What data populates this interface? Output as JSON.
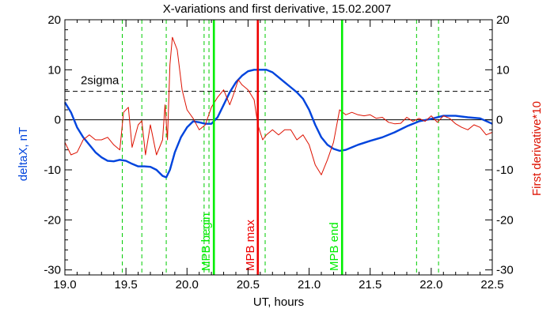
{
  "chart_data": {
    "type": "line",
    "title": "X-variations and first derivative, 15.02.2007",
    "xlabel": "UT, hours",
    "ylabel_left": "deltaX, nT",
    "ylabel_right": "First derivative*10",
    "xlim": [
      19.0,
      22.5
    ],
    "ylim": [
      -31,
      20
    ],
    "x_ticks": [
      "19.0",
      "19.5",
      "20.0",
      "20.5",
      "21.0",
      "21.5",
      "22.0",
      "22.5"
    ],
    "y_ticks": [
      "20",
      "10",
      "0",
      "-10",
      "-20",
      "-30"
    ],
    "colors": {
      "deltaX": "#0044dd",
      "derivative": "#dd1100",
      "mpb": "#00ee00",
      "mpb_max": "#ee0000",
      "dashed": "#00cc00",
      "axis": "#000000"
    },
    "threshold": {
      "label": "2sigma",
      "value": 5.7
    },
    "zero_line": 0,
    "dashed_verticals": [
      19.47,
      19.63,
      19.83,
      20.14,
      20.18,
      20.64,
      21.88,
      22.06
    ],
    "markers": [
      {
        "label": "MPB begin",
        "x": 20.22,
        "color": "#00ee00"
      },
      {
        "label": "MPB max",
        "x": 20.58,
        "color": "#ee0000"
      },
      {
        "label": "MPB end",
        "x": 21.27,
        "color": "#00ee00"
      }
    ],
    "series": [
      {
        "key": "deltaX",
        "x": [
          19.0,
          19.05,
          19.1,
          19.15,
          19.2,
          19.25,
          19.3,
          19.35,
          19.4,
          19.45,
          19.5,
          19.55,
          19.6,
          19.65,
          19.7,
          19.75,
          19.8,
          19.83,
          19.86,
          19.9,
          19.95,
          20.0,
          20.05,
          20.1,
          20.15,
          20.2,
          20.25,
          20.3,
          20.35,
          20.4,
          20.45,
          20.5,
          20.55,
          20.6,
          20.65,
          20.7,
          20.75,
          20.8,
          20.85,
          20.9,
          20.95,
          21.0,
          21.05,
          21.1,
          21.15,
          21.2,
          21.25,
          21.3,
          21.35,
          21.4,
          21.5,
          21.6,
          21.7,
          21.8,
          21.9,
          22.0,
          22.1,
          22.2,
          22.3,
          22.4,
          22.5
        ],
        "y": [
          3.5,
          1.5,
          -1.5,
          -3.5,
          -5,
          -6.5,
          -7.5,
          -8.2,
          -8.3,
          -8.0,
          -8.2,
          -8.8,
          -9.3,
          -9.3,
          -9.4,
          -10.0,
          -11.2,
          -11.5,
          -10.0,
          -6.5,
          -3.5,
          -1.5,
          -0.3,
          -0.5,
          -0.8,
          -0.8,
          0.5,
          3.0,
          5.5,
          7.5,
          8.8,
          9.7,
          10.0,
          10.0,
          10.0,
          9.5,
          8.5,
          7.5,
          6.5,
          5.5,
          4.2,
          2.0,
          -1.0,
          -3.5,
          -5.0,
          -5.8,
          -6.2,
          -6.0,
          -5.5,
          -5.0,
          -4.2,
          -3.5,
          -2.5,
          -1.3,
          -0.3,
          0.2,
          0.8,
          0.8,
          0.5,
          0.3,
          -0.8
        ]
      },
      {
        "key": "derivative",
        "x": [
          19.0,
          19.05,
          19.1,
          19.15,
          19.2,
          19.25,
          19.3,
          19.35,
          19.4,
          19.45,
          19.48,
          19.52,
          19.55,
          19.6,
          19.63,
          19.66,
          19.7,
          19.75,
          19.8,
          19.82,
          19.84,
          19.86,
          19.88,
          19.92,
          19.96,
          20.0,
          20.05,
          20.1,
          20.15,
          20.2,
          20.25,
          20.3,
          20.35,
          20.38,
          20.42,
          20.45,
          20.5,
          20.55,
          20.58,
          20.62,
          20.65,
          20.7,
          20.75,
          20.8,
          20.85,
          20.9,
          20.95,
          21.0,
          21.05,
          21.1,
          21.15,
          21.2,
          21.25,
          21.3,
          21.35,
          21.4,
          21.45,
          21.5,
          21.55,
          21.6,
          21.65,
          21.7,
          21.75,
          21.8,
          21.85,
          21.9,
          21.95,
          22.0,
          22.05,
          22.1,
          22.15,
          22.2,
          22.25,
          22.3,
          22.35,
          22.4,
          22.45,
          22.5
        ],
        "y": [
          -4.5,
          -7.0,
          -6.5,
          -4.0,
          -3.0,
          -4.0,
          -4.0,
          -3.5,
          -5.0,
          -6.0,
          1.5,
          2.5,
          -5.5,
          -1.0,
          -0.2,
          -7.0,
          -1.0,
          -7.0,
          -4.0,
          3.0,
          -4.0,
          11.0,
          16.5,
          14.0,
          6.0,
          2.0,
          0.3,
          -2.0,
          -1.0,
          2.5,
          4.5,
          6.0,
          3.0,
          5.0,
          8.0,
          7.0,
          6.0,
          4.0,
          -1.0,
          -4.0,
          -3.0,
          -2.0,
          -3.0,
          -2.0,
          -2.0,
          -4.0,
          -3.0,
          -5.0,
          -9.0,
          -11.0,
          -8.0,
          -4.5,
          2.0,
          1.0,
          1.5,
          1.0,
          0.8,
          1.0,
          0.3,
          0.5,
          -0.5,
          -0.8,
          -0.7,
          0.5,
          -0.3,
          0.3,
          -0.3,
          0.8,
          -0.5,
          0.8,
          0.3,
          -0.8,
          -1.5,
          -2.0,
          -1.0,
          -1.5,
          -3.0,
          -2.5
        ]
      }
    ]
  }
}
